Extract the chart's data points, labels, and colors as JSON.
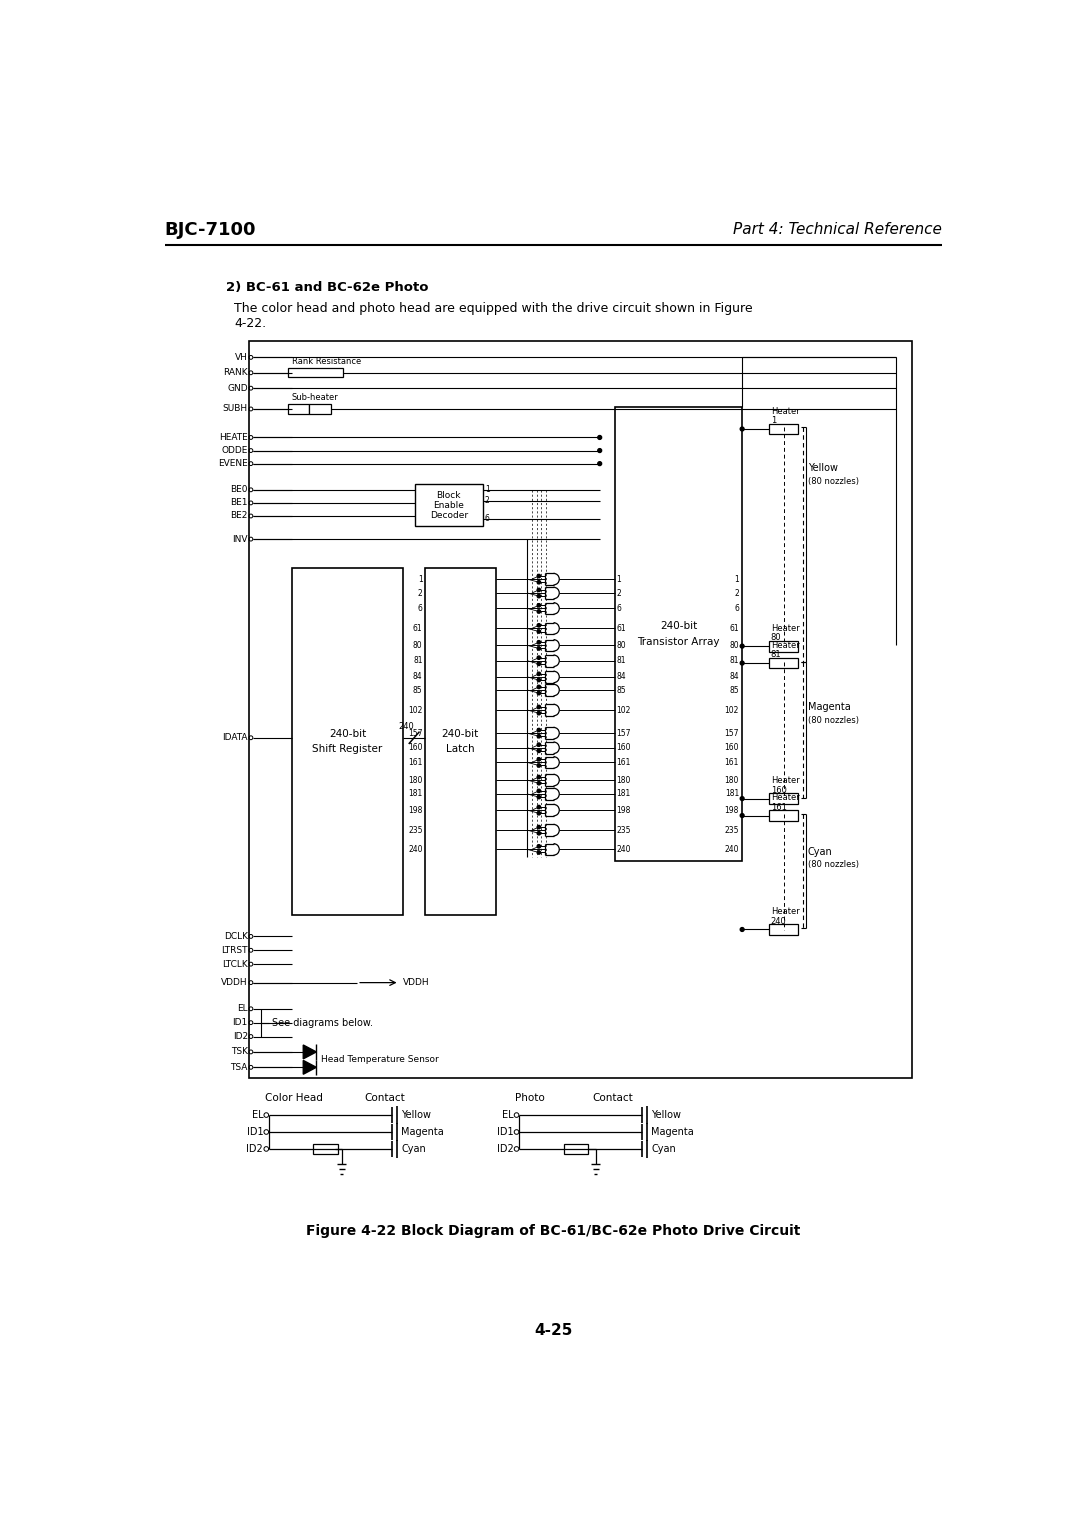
{
  "page_header_left": "BJC-7100",
  "page_header_right": "Part 4: Technical Reference",
  "section_title": "2) BC-61 and BC-62e Photo",
  "figure_caption": "Figure 4-22 Block Diagram of BC-61/BC-62e Photo Drive Circuit",
  "page_number": "4-25",
  "bg_color": "#ffffff"
}
